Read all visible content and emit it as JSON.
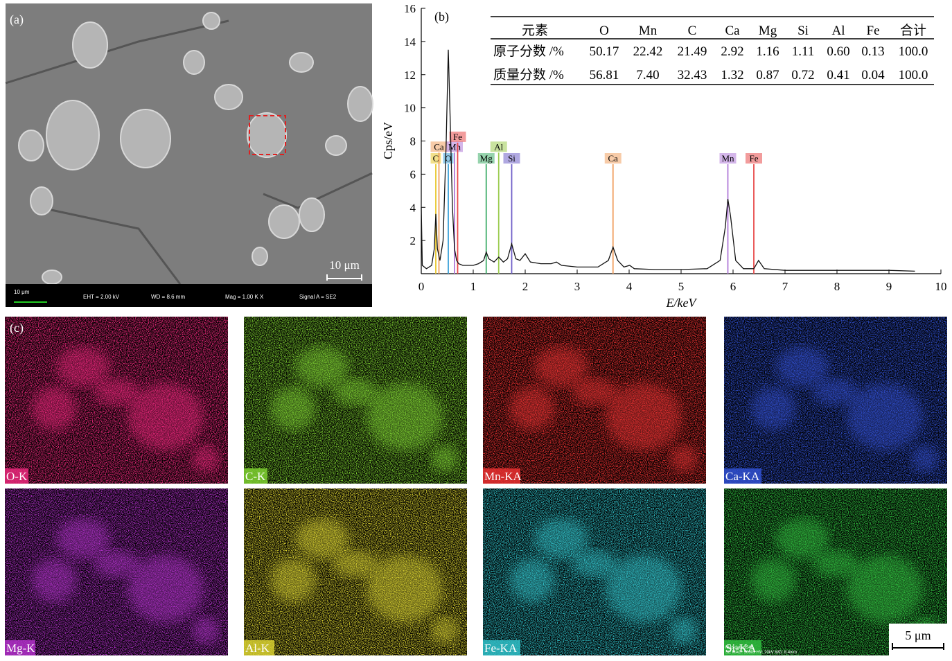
{
  "panel_a": {
    "label": "(a)",
    "scale_bar": "10 μm",
    "info_bar": {
      "scale": "10 μm",
      "eht": "EHT = 2.00 kV",
      "wd": "WD = 8.6 mm",
      "mag": "Mag = 1.00 K X",
      "signal": "Signal A = SE2"
    }
  },
  "chart_data": {
    "type": "line",
    "panel_label": "(b)",
    "x_label": "E/keV",
    "y_label": "Cps/eV",
    "xlim": [
      0,
      10
    ],
    "ylim": [
      0,
      16
    ],
    "xticks": [
      0,
      1,
      2,
      3,
      4,
      5,
      6,
      7,
      8,
      9,
      10
    ],
    "yticks": [
      2,
      4,
      6,
      8,
      10,
      12,
      14,
      16
    ],
    "series": [
      {
        "color": "#111111",
        "x": [
          0,
          0.02,
          0.1,
          0.2,
          0.25,
          0.28,
          0.31,
          0.36,
          0.42,
          0.48,
          0.52,
          0.55,
          0.6,
          0.64,
          0.68,
          0.72,
          0.8,
          0.9,
          1.0,
          1.1,
          1.2,
          1.25,
          1.3,
          1.4,
          1.49,
          1.58,
          1.66,
          1.74,
          1.82,
          1.9,
          2.0,
          2.1,
          2.3,
          2.5,
          2.6,
          2.7,
          3.0,
          3.4,
          3.6,
          3.69,
          3.78,
          3.9,
          4.01,
          4.1,
          4.5,
          5.0,
          5.5,
          5.75,
          5.85,
          5.9,
          5.95,
          6.05,
          6.2,
          6.4,
          6.49,
          6.6,
          7.0,
          8.0,
          9.0,
          9.5
        ],
        "values": [
          4,
          0.5,
          0.3,
          0.5,
          1.5,
          3.6,
          1.5,
          0.8,
          2.0,
          8,
          13.5,
          10,
          4,
          1.5,
          0.8,
          0.6,
          0.5,
          0.5,
          0.5,
          0.6,
          0.8,
          1.3,
          0.9,
          0.7,
          1.0,
          0.7,
          0.9,
          1.8,
          0.9,
          0.8,
          1.2,
          0.7,
          0.6,
          0.6,
          0.7,
          0.5,
          0.4,
          0.4,
          0.8,
          1.6,
          0.8,
          0.4,
          0.5,
          0.3,
          0.25,
          0.25,
          0.3,
          0.8,
          2.8,
          4.5,
          3.5,
          0.8,
          0.3,
          0.3,
          0.8,
          0.3,
          0.2,
          0.2,
          0.2,
          0.15
        ]
      }
    ],
    "markers": [
      {
        "label": "C",
        "x": 0.28,
        "height": 6.6,
        "color": "#e8c72a"
      },
      {
        "label": "Ca",
        "x": 0.34,
        "height": 7.3,
        "color": "#f0a060"
      },
      {
        "label": "O",
        "x": 0.52,
        "height": 6.6,
        "color": "#3aa0d8"
      },
      {
        "label": "Mn",
        "x": 0.64,
        "height": 7.3,
        "color": "#b07ad8"
      },
      {
        "label": "Fe",
        "x": 0.7,
        "height": 7.9,
        "color": "#e84a4a"
      },
      {
        "label": "Mg",
        "x": 1.25,
        "height": 6.6,
        "color": "#3fae6a"
      },
      {
        "label": "Al",
        "x": 1.49,
        "height": 7.3,
        "color": "#9ccc50"
      },
      {
        "label": "Si",
        "x": 1.74,
        "height": 6.6,
        "color": "#7060c8"
      },
      {
        "label": "Ca",
        "x": 3.69,
        "height": 6.6,
        "color": "#f0a060"
      },
      {
        "label": "Mn",
        "x": 5.9,
        "height": 6.6,
        "color": "#b07ad8"
      },
      {
        "label": "Fe",
        "x": 6.4,
        "height": 6.6,
        "color": "#e84a4a"
      }
    ],
    "table": {
      "header": [
        "元素",
        "O",
        "Mn",
        "C",
        "Ca",
        "Mg",
        "Si",
        "Al",
        "Fe",
        "合计"
      ],
      "rows": [
        [
          "原子分数 /%",
          "50.17",
          "22.42",
          "21.49",
          "2.92",
          "1.16",
          "1.11",
          "0.60",
          "0.13",
          "100.0"
        ],
        [
          "质量分数 /%",
          "56.81",
          "7.40",
          "32.43",
          "1.32",
          "0.87",
          "0.72",
          "0.41",
          "0.04",
          "100.0"
        ]
      ]
    }
  },
  "panel_c": {
    "label": "(c)",
    "scale_bar": "5 μm",
    "map_info": [
      "Map data 3546",
      "SE MAG: 5000x  HV: 20kV  WD: 8.4mm"
    ],
    "maps": [
      {
        "label": "O-K",
        "color": "#e8287a"
      },
      {
        "label": "C-K",
        "color": "#7ed030"
      },
      {
        "label": "Mn-KA",
        "color": "#e83030"
      },
      {
        "label": "Ca-KA",
        "color": "#3050d0"
      },
      {
        "label": "Mg-K",
        "color": "#b030c8"
      },
      {
        "label": "Al-K",
        "color": "#d8d030"
      },
      {
        "label": "Fe-KA",
        "color": "#30c0c8"
      },
      {
        "label": "Si-KA",
        "color": "#30c040"
      }
    ]
  }
}
